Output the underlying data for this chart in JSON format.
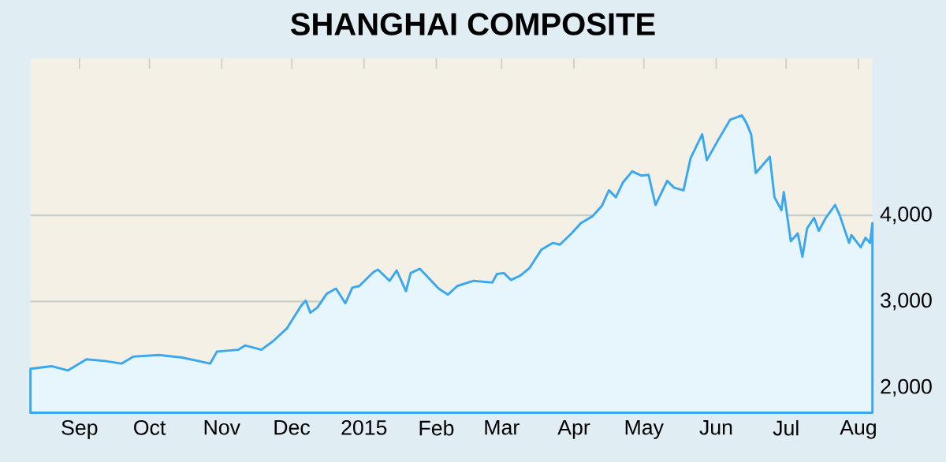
{
  "chart_data": {
    "type": "area",
    "title": "SHANGHAI COMPOSITE",
    "x": [
      "2014-08-11",
      "2014-08-20",
      "2014-08-27",
      "2014-09-04",
      "2014-09-12",
      "2014-09-19",
      "2014-09-24",
      "2014-10-05",
      "2014-10-15",
      "2014-10-22",
      "2014-10-27",
      "2014-10-30",
      "2014-11-08",
      "2014-11-11",
      "2014-11-18",
      "2014-11-23",
      "2014-11-29",
      "2014-12-05",
      "2014-12-07",
      "2014-12-09",
      "2014-12-12",
      "2014-12-16",
      "2014-12-20",
      "2014-12-24",
      "2014-12-27",
      "2014-12-30",
      "2015-01-05",
      "2015-01-07",
      "2015-01-12",
      "2015-01-15",
      "2015-01-19",
      "2015-01-21",
      "2015-01-25",
      "2015-02-02",
      "2015-02-06",
      "2015-02-10",
      "2015-02-17",
      "2015-02-25",
      "2015-02-27",
      "2015-03-02",
      "2015-03-05",
      "2015-03-09",
      "2015-03-13",
      "2015-03-18",
      "2015-03-23",
      "2015-03-26",
      "2015-03-31",
      "2015-04-04",
      "2015-04-09",
      "2015-04-13",
      "2015-04-16",
      "2015-04-19",
      "2015-04-22",
      "2015-04-26",
      "2015-04-30",
      "2015-05-03",
      "2015-05-06",
      "2015-05-11",
      "2015-05-14",
      "2015-05-18",
      "2015-05-21",
      "2015-05-26",
      "2015-05-28",
      "2015-06-02",
      "2015-06-07",
      "2015-06-12",
      "2015-06-14",
      "2015-06-16",
      "2015-06-18",
      "2015-06-24",
      "2015-06-26",
      "2015-06-29",
      "2015-06-30",
      "2015-07-03",
      "2015-07-06",
      "2015-07-08",
      "2015-07-10",
      "2015-07-13",
      "2015-07-15",
      "2015-07-18",
      "2015-07-22",
      "2015-07-24",
      "2015-07-28",
      "2015-07-29",
      "2015-08-02",
      "2015-08-04",
      "2015-08-06",
      "2015-08-07"
    ],
    "series": [
      {
        "color": "#3aa8f0",
        "values": [
          2220,
          2250,
          2200,
          2330,
          2310,
          2280,
          2360,
          2380,
          2350,
          2310,
          2280,
          2420,
          2440,
          2490,
          2440,
          2540,
          2690,
          2950,
          3010,
          2870,
          2930,
          3090,
          3150,
          2980,
          3160,
          3180,
          3340,
          3370,
          3240,
          3360,
          3120,
          3330,
          3380,
          3150,
          3080,
          3180,
          3240,
          3220,
          3320,
          3330,
          3250,
          3300,
          3390,
          3600,
          3680,
          3660,
          3790,
          3910,
          3990,
          4110,
          4290,
          4210,
          4380,
          4510,
          4460,
          4470,
          4120,
          4400,
          4320,
          4290,
          4660,
          4940,
          4640,
          4880,
          5110,
          5160,
          5070,
          4940,
          4490,
          4680,
          4210,
          4060,
          4270,
          3700,
          3790,
          3520,
          3850,
          3970,
          3820,
          3970,
          4120,
          4000,
          3680,
          3770,
          3630,
          3740,
          3680,
          3910
        ]
      }
    ],
    "xlim": [
      "2014-08-11",
      "2015-08-07"
    ],
    "xticks": [
      {
        "value": "2014-09-01",
        "label": "Sep"
      },
      {
        "value": "2014-10-01",
        "label": "Oct"
      },
      {
        "value": "2014-11-01",
        "label": "Nov"
      },
      {
        "value": "2014-12-01",
        "label": "Dec"
      },
      {
        "value": "2015-01-01",
        "label": "2015"
      },
      {
        "value": "2015-02-01",
        "label": "Feb"
      },
      {
        "value": "2015-03-01",
        "label": "Mar"
      },
      {
        "value": "2015-04-01",
        "label": "Apr"
      },
      {
        "value": "2015-05-01",
        "label": "May"
      },
      {
        "value": "2015-06-01",
        "label": "Jun"
      },
      {
        "value": "2015-07-01",
        "label": "Jul"
      },
      {
        "value": "2015-08-01",
        "label": "Aug"
      }
    ],
    "ylim": [
      1710,
      5820
    ],
    "yticks": [
      {
        "value": 2000,
        "label": "2,000"
      },
      {
        "value": 3000,
        "label": "3,000"
      },
      {
        "value": 4000,
        "label": "4,000"
      }
    ],
    "grid": "y"
  }
}
